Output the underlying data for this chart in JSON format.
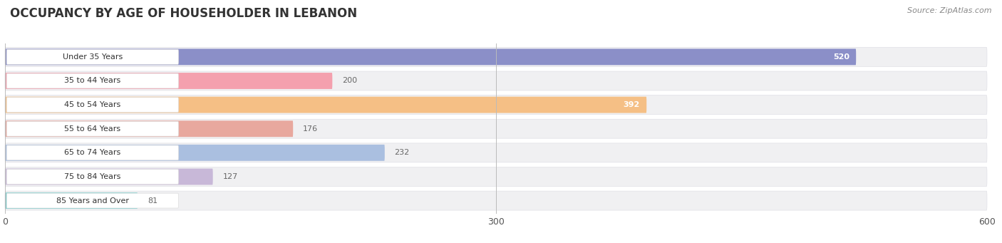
{
  "title": "OCCUPANCY BY AGE OF HOUSEHOLDER IN LEBANON",
  "source": "Source: ZipAtlas.com",
  "categories": [
    "Under 35 Years",
    "35 to 44 Years",
    "45 to 54 Years",
    "55 to 64 Years",
    "65 to 74 Years",
    "75 to 84 Years",
    "85 Years and Over"
  ],
  "values": [
    520,
    200,
    392,
    176,
    232,
    127,
    81
  ],
  "bar_colors": [
    "#8b8fc8",
    "#f4a0ae",
    "#f5bf85",
    "#e8a89e",
    "#aabfe0",
    "#c8b8d8",
    "#80cece"
  ],
  "row_bg_color": "#f0f0f2",
  "xlim_max": 600,
  "xticks": [
    0,
    300,
    600
  ],
  "label_color_inside": "#ffffff",
  "label_color_outside": "#666666",
  "background_color": "#ffffff",
  "title_fontsize": 12,
  "bar_height": 0.68,
  "value_threshold": 350,
  "label_pill_color": "#ffffff",
  "gap_color": "#e0e0e6"
}
